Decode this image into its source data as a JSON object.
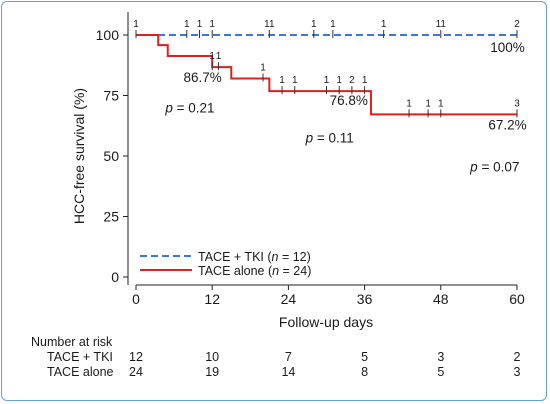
{
  "chart_data": {
    "type": "line",
    "chart_kind": "kaplan-meier",
    "xlabel": "Follow-up days",
    "ylabel": "HCC-free survival (%)",
    "xlim": [
      0,
      60
    ],
    "ylim": [
      0,
      100
    ],
    "xticks": [
      0,
      12,
      24,
      36,
      48,
      60
    ],
    "yticks": [
      0,
      25,
      50,
      75,
      100
    ],
    "grid": false,
    "legend_placement": "bottom-left",
    "series": [
      {
        "name": "TACE + TKI (n = 12)",
        "name_plain": "TACE + TKI (",
        "name_n": "n",
        "name_rest": " = 12)",
        "color": "#3a78d8",
        "style": "dashed",
        "steps": [
          [
            0,
            100
          ],
          [
            60,
            100
          ]
        ],
        "censor_x": [
          0,
          8,
          10,
          12,
          21,
          28,
          31,
          39,
          48,
          60
        ],
        "censor_labels": [
          "1",
          "1",
          "1",
          "1",
          "11",
          "1",
          "1",
          "1",
          "11",
          "2"
        ]
      },
      {
        "name": "TACE alone (n = 24)",
        "name_plain": "TACE alone  (",
        "name_n": "n",
        "name_rest": " = 24)",
        "color": "#e0201b",
        "style": "solid",
        "steps": [
          [
            0,
            100
          ],
          [
            3.5,
            95.8
          ],
          [
            5,
            91.3
          ],
          [
            12,
            86.7
          ],
          [
            15,
            82
          ],
          [
            21,
            76.8
          ],
          [
            37,
            67.2
          ],
          [
            60,
            67.2
          ]
        ],
        "censor_x": [
          12,
          13,
          20,
          23,
          25,
          30,
          32,
          34,
          36,
          43,
          46,
          48,
          60
        ],
        "censor_labels": [
          "1",
          "1",
          "1",
          "1",
          "1",
          "1",
          "1",
          "2",
          "1",
          "1",
          "1",
          "1",
          "3"
        ]
      }
    ],
    "annotations": [
      {
        "text": "100%",
        "x": 58.5,
        "y": 93
      },
      {
        "text": "86.7%",
        "x": 10.5,
        "y": 80.5
      },
      {
        "text": "76.8%",
        "x": 33.5,
        "y": 71
      },
      {
        "text": "67.2%",
        "x": 58.5,
        "y": 61
      },
      {
        "text": "= 0.21",
        "x": 8.5,
        "y": 68,
        "italic": "p"
      },
      {
        "text": "= 0.11",
        "x": 30.5,
        "y": 55.5,
        "italic": "p"
      },
      {
        "text": "= 0.07",
        "x": 56.5,
        "y": 43.5,
        "italic": "p"
      }
    ]
  },
  "risk_table": {
    "title": "Number at risk",
    "rows": [
      {
        "label": "TACE + TKI",
        "values": [
          "12",
          "10",
          "7",
          "5",
          "3",
          "2"
        ]
      },
      {
        "label": "TACE alone",
        "values": [
          "24",
          "19",
          "14",
          "8",
          "5",
          "3"
        ]
      }
    ]
  }
}
